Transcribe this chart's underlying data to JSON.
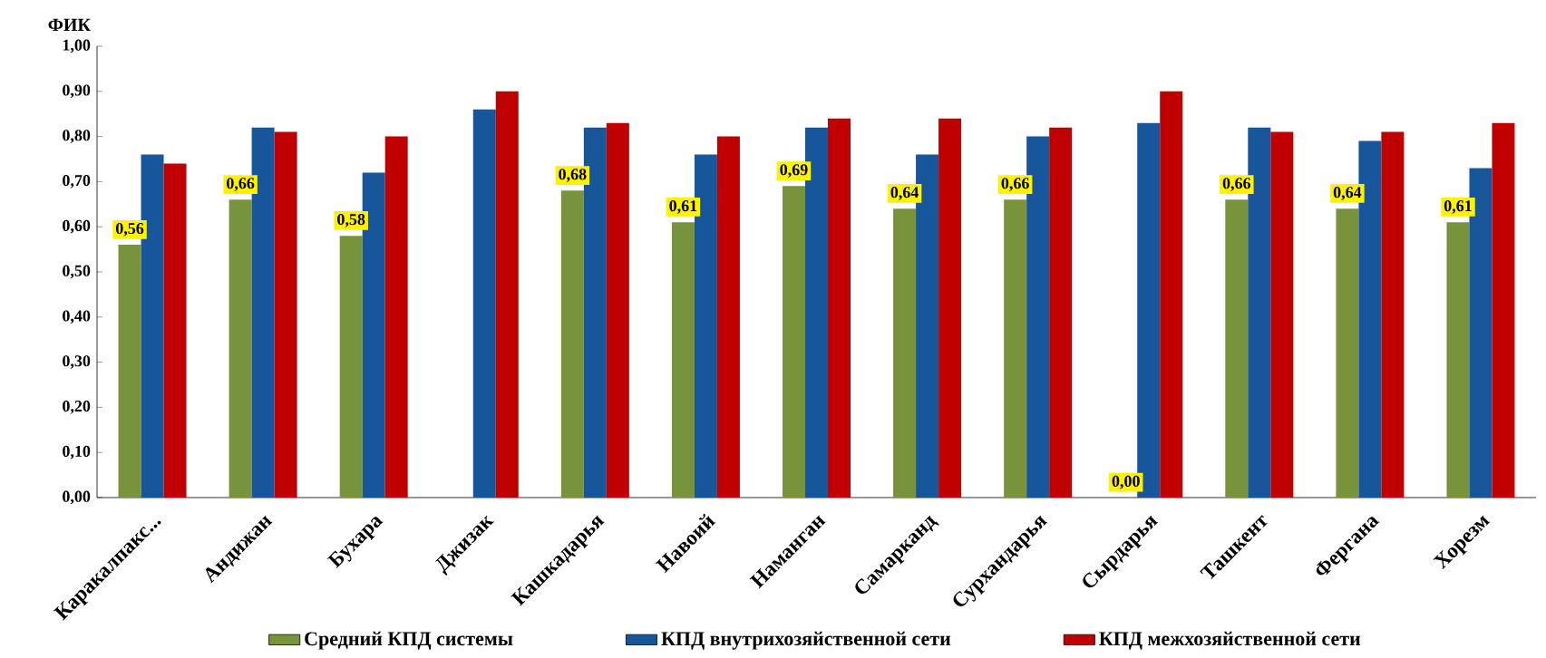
{
  "chart_data": {
    "type": "bar",
    "ylabel": "ФИК",
    "categories": [
      "Каракалпакс...",
      "Андижан",
      "Бухара",
      "Джизак",
      "Кашкадарья",
      "Навоий",
      "Наманган",
      "Самарканд",
      "Сурхандарья",
      "Сырдарья",
      "Ташкент",
      "Фергана",
      "Хорезм"
    ],
    "series": [
      {
        "name": "Средний КПД системы",
        "color": "#77933c",
        "values": [
          0.56,
          0.66,
          0.58,
          null,
          0.68,
          0.61,
          0.69,
          0.64,
          0.66,
          0,
          0.66,
          0.64,
          0.61
        ],
        "value_labels": [
          "0,56",
          "0,66",
          "0,58",
          null,
          "0,68",
          "0,61",
          "0,69",
          "0,64",
          "0,66",
          "0,00",
          "0,66",
          "0,64",
          "0,61"
        ]
      },
      {
        "name": "КПД внутрихозяйственной сети",
        "color": "#17569b",
        "values": [
          0.76,
          0.82,
          0.72,
          0.86,
          0.82,
          0.76,
          0.82,
          0.76,
          0.8,
          0.83,
          0.82,
          0.79,
          0.73
        ]
      },
      {
        "name": "КПД межхозяйственной сети",
        "color": "#c00000",
        "values": [
          0.74,
          0.81,
          0.8,
          0.9,
          0.83,
          0.8,
          0.84,
          0.84,
          0.82,
          0.9,
          0.81,
          0.81,
          0.83
        ]
      }
    ],
    "ylim": [
      0,
      1
    ],
    "yticks": [
      {
        "value": 0,
        "label": "0,00"
      },
      {
        "value": 0.1,
        "label": "0,10"
      },
      {
        "value": 0.2,
        "label": "0,20"
      },
      {
        "value": 0.3,
        "label": "0,30"
      },
      {
        "value": 0.4,
        "label": "0,40"
      },
      {
        "value": 0.5,
        "label": "0,50"
      },
      {
        "value": 0.6,
        "label": "0,60"
      },
      {
        "value": 0.7,
        "label": "0,70"
      },
      {
        "value": 0.8,
        "label": "0,80"
      },
      {
        "value": 0.9,
        "label": "0,90"
      },
      {
        "value": 1.0,
        "label": "1,00"
      }
    ],
    "legend": "bottom"
  }
}
